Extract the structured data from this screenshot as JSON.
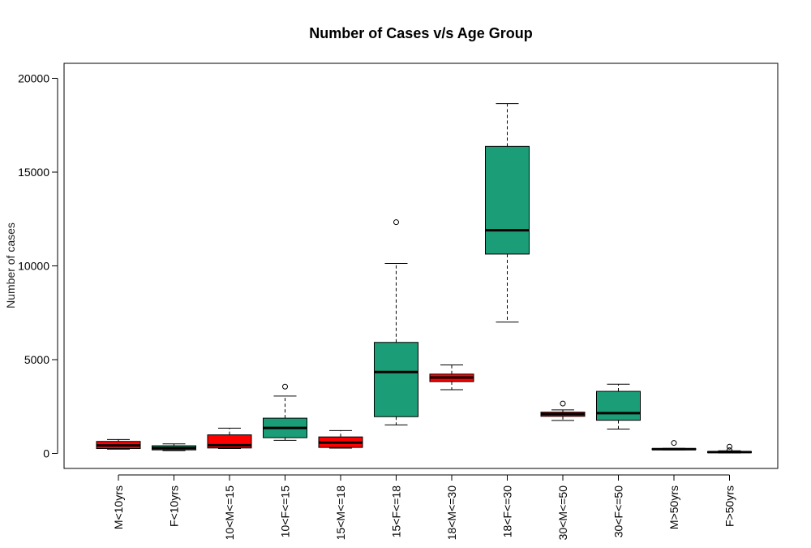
{
  "chart_data": {
    "type": "boxplot",
    "title": "Number of Cases v/s Age Group",
    "xlabel": "",
    "ylabel": "Number of cases",
    "ylim": [
      -800,
      20800
    ],
    "yticks": [
      0,
      5000,
      10000,
      15000,
      20000
    ],
    "grid": false,
    "legend": "none",
    "colors": {
      "male": "#ff0000",
      "female": "#1b9e77",
      "median": "#000000",
      "frame": "#000000"
    },
    "categories": [
      "M<10yrs",
      "F<10yrs",
      "10<M<=15",
      "10<F<=15",
      "15<M<=18",
      "15<F<=18",
      "18<M<=30",
      "18<F<=30",
      "30<M<=50",
      "30<F<=50",
      "M>50yrs",
      "F>50yrs"
    ],
    "boxes": [
      {
        "label": "M<10yrs",
        "color": "#ff0000",
        "whisker_low": 230,
        "q1": 260,
        "median": 430,
        "q3": 640,
        "whisker_high": 740,
        "outliers": []
      },
      {
        "label": "F<10yrs",
        "color": "#1b9e77",
        "whisker_low": 150,
        "q1": 190,
        "median": 290,
        "q3": 410,
        "whisker_high": 510,
        "outliers": []
      },
      {
        "label": "10<M<=15",
        "color": "#ff0000",
        "whisker_low": 260,
        "q1": 290,
        "median": 440,
        "q3": 990,
        "whisker_high": 1350,
        "outliers": []
      },
      {
        "label": "10<F<=15",
        "color": "#1b9e77",
        "whisker_low": 700,
        "q1": 840,
        "median": 1360,
        "q3": 1880,
        "whisker_high": 3060,
        "outliers": [
          3560
        ]
      },
      {
        "label": "15<M<=18",
        "color": "#ff0000",
        "whisker_low": 280,
        "q1": 320,
        "median": 580,
        "q3": 880,
        "whisker_high": 1220,
        "outliers": []
      },
      {
        "label": "15<F<=18",
        "color": "#1b9e77",
        "whisker_low": 1520,
        "q1": 1960,
        "median": 4340,
        "q3": 5920,
        "whisker_high": 10130,
        "outliers": [
          12330
        ]
      },
      {
        "label": "18<M<=30",
        "color": "#ff0000",
        "whisker_low": 3400,
        "q1": 3830,
        "median": 4050,
        "q3": 4230,
        "whisker_high": 4720,
        "outliers": []
      },
      {
        "label": "18<F<=30",
        "color": "#1b9e77",
        "whisker_low": 7000,
        "q1": 10630,
        "median": 11900,
        "q3": 16370,
        "whisker_high": 18650,
        "outliers": []
      },
      {
        "label": "30<M<=50",
        "color": "#ff0000",
        "whisker_low": 1760,
        "q1": 1980,
        "median": 2100,
        "q3": 2200,
        "whisker_high": 2320,
        "outliers": [
          2660
        ]
      },
      {
        "label": "30<F<=50",
        "color": "#1b9e77",
        "whisker_low": 1300,
        "q1": 1770,
        "median": 2150,
        "q3": 3310,
        "whisker_high": 3690,
        "outliers": []
      },
      {
        "label": "M>50yrs",
        "color": "#ff0000",
        "whisker_low": 190,
        "q1": 210,
        "median": 230,
        "q3": 250,
        "whisker_high": 270,
        "outliers": [
          560
        ]
      },
      {
        "label": "F>50yrs",
        "color": "#1b9e77",
        "whisker_low": 20,
        "q1": 40,
        "median": 70,
        "q3": 100,
        "whisker_high": 140,
        "outliers": [
          170,
          360
        ]
      }
    ]
  }
}
